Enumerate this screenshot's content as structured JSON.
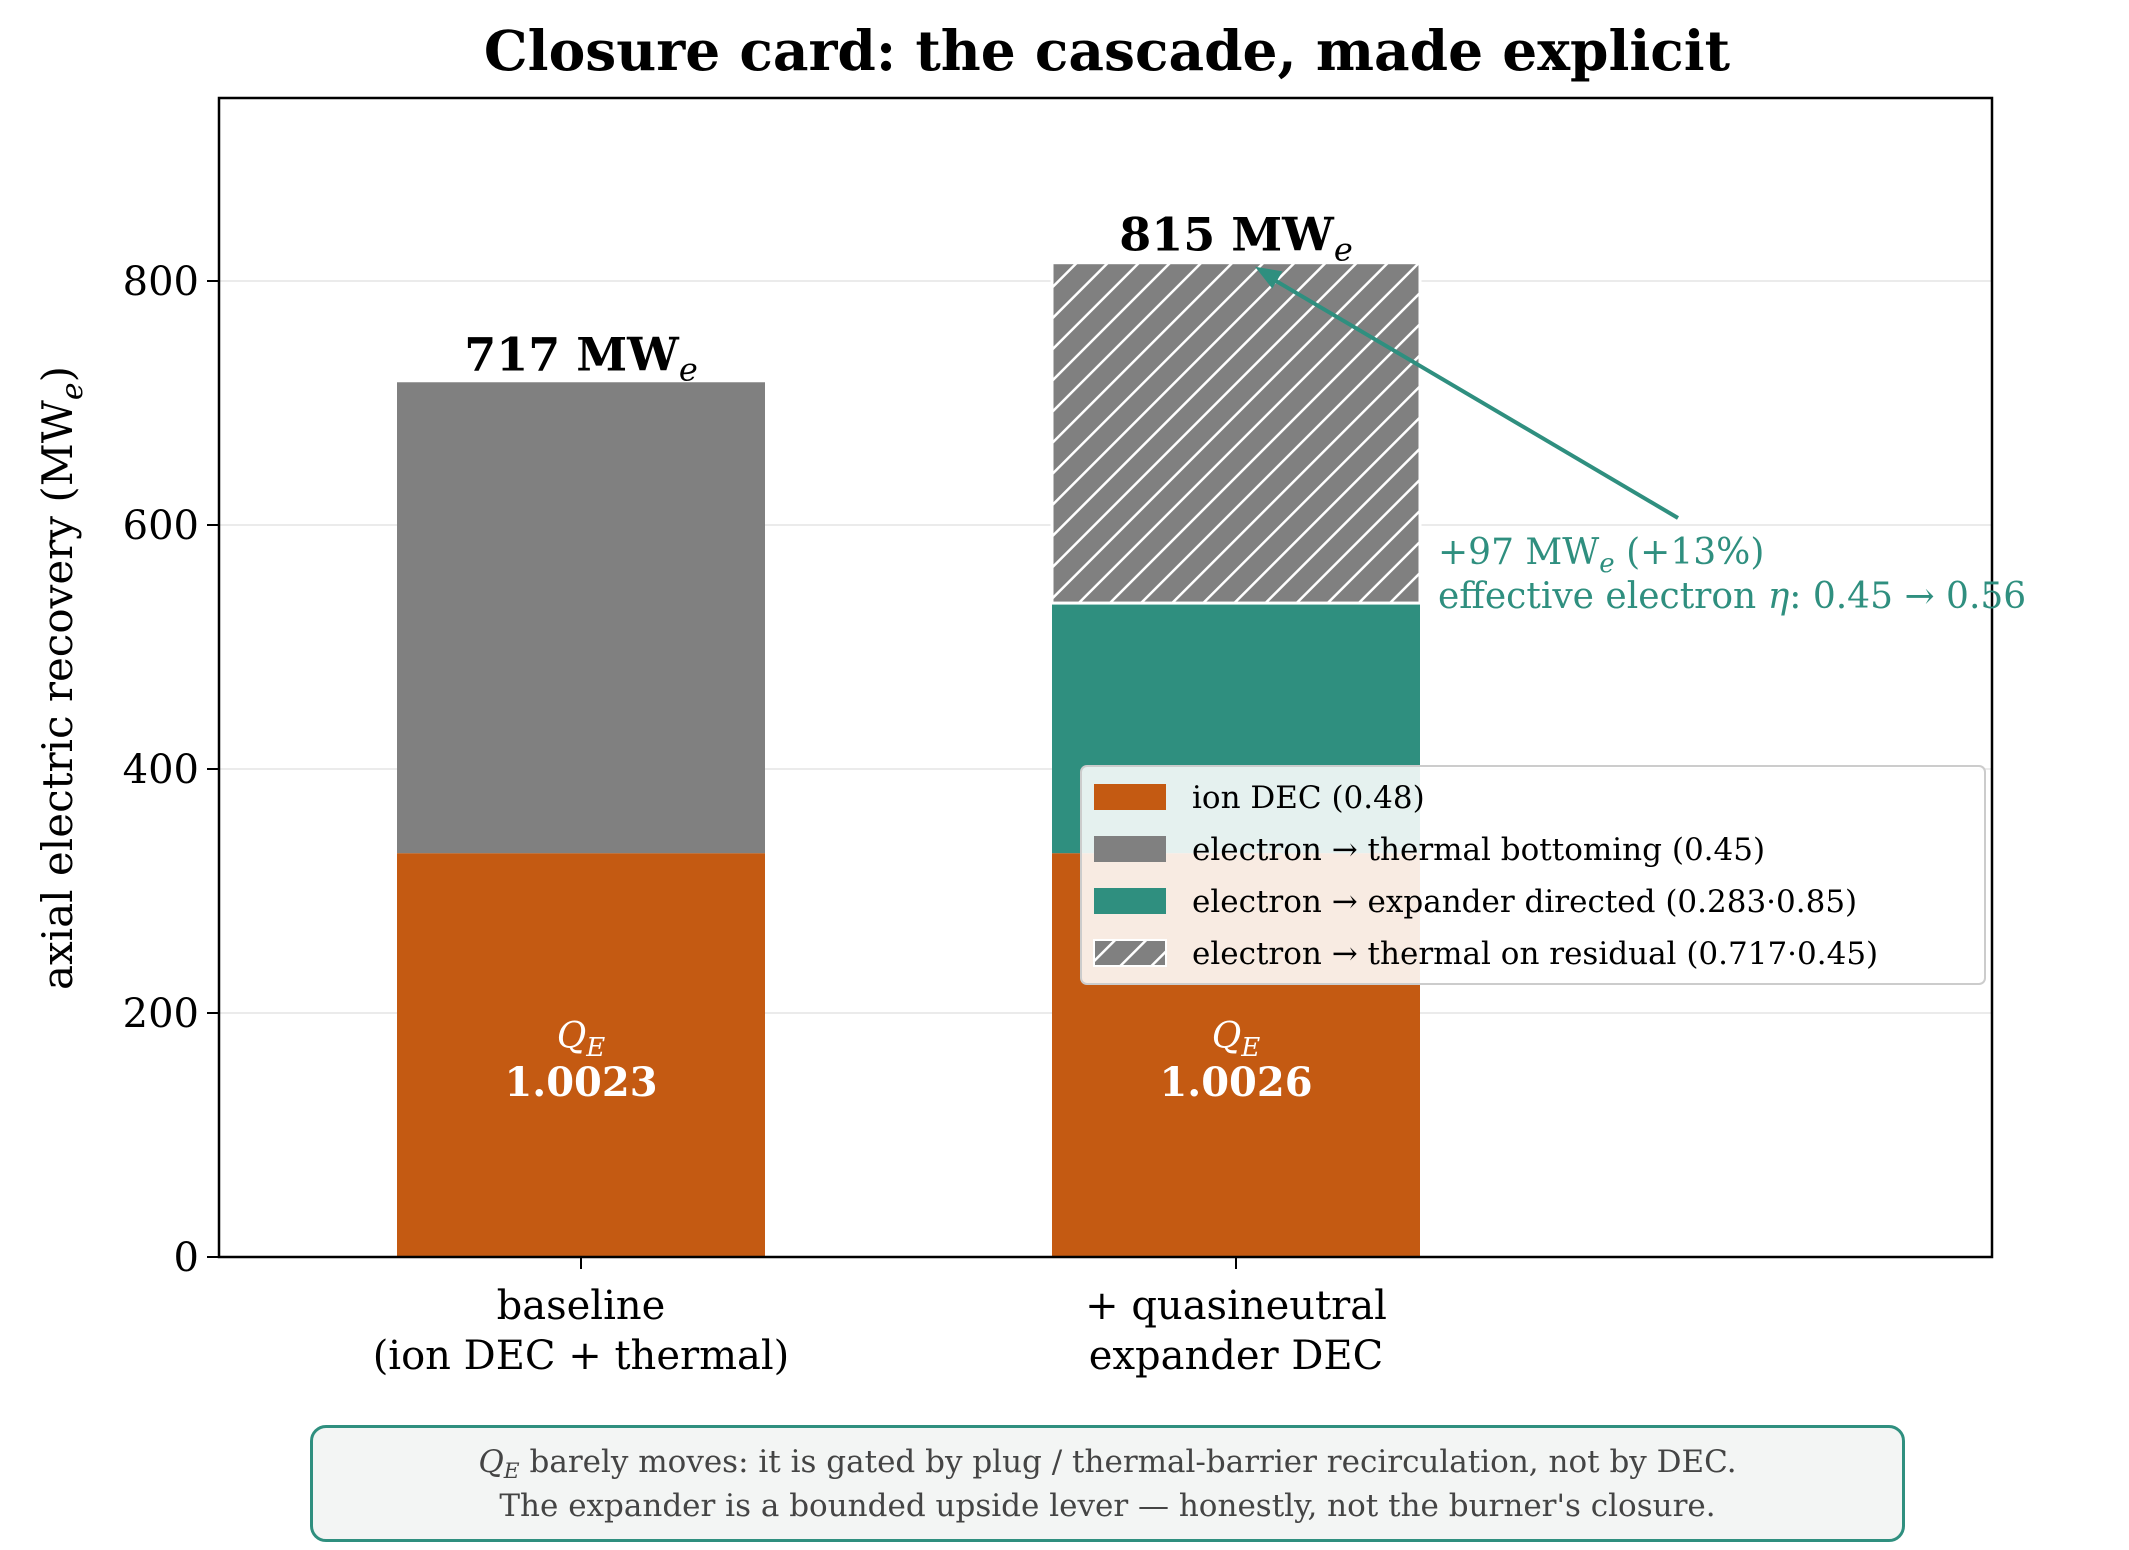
{
  "chart_data": {
    "type": "bar",
    "stacked": true,
    "title": "Closure card: the cascade, made explicit",
    "ylabel": "axial electric recovery  (MW",
    "ylabel_sub": "e",
    "ylabel_close": ")",
    "ylim": [
      0,
      950
    ],
    "yticks": [
      0,
      200,
      400,
      600,
      800
    ],
    "grid": "horizontal",
    "categories": [
      [
        "baseline",
        "(ion DEC + thermal)"
      ],
      [
        "+ quasineutral",
        "expander DEC"
      ]
    ],
    "series": [
      {
        "name": "ion DEC (0.48)",
        "values": [
          331,
          331
        ],
        "color": "#c45a12",
        "hatch": false
      },
      {
        "name": "electron → thermal bottoming (0.45)",
        "values": [
          386,
          0
        ],
        "color": "#808080",
        "hatch": false
      },
      {
        "name": "electron → expander directed (0.283·0.85)",
        "values": [
          0,
          205
        ],
        "color": "#2f8f7f",
        "hatch": false
      },
      {
        "name": "electron → thermal on residual (0.717·0.45)",
        "values": [
          0,
          279
        ],
        "color": "#808080",
        "hatch": true
      }
    ],
    "totals": [
      {
        "value": "717",
        "unit": "MW",
        "sub": "e"
      },
      {
        "value": "815",
        "unit": "MW",
        "sub": "e"
      }
    ],
    "inner_labels": [
      {
        "symbol": "Q",
        "sub": "E",
        "value": "1.0023"
      },
      {
        "symbol": "Q",
        "sub": "E",
        "value": "1.0026"
      }
    ],
    "annotation": {
      "line1_pre": "+97 MW",
      "line1_sub": "e",
      "line1_post": "  (+13%)",
      "line2_pre": "effective electron ",
      "line2_symbol": "η",
      "line2_post": ": 0.45 → 0.56",
      "color": "#2f8f7f",
      "points_to_value": 815
    },
    "legend_position": "center-right"
  },
  "footnote": {
    "symbol": "Q",
    "sub": "E",
    "line1_rest": " barely moves: it is gated by plug / thermal-barrier recirculation, not by DEC.",
    "line2": "The expander is a bounded upside lever — honestly, not the burner's closure."
  }
}
